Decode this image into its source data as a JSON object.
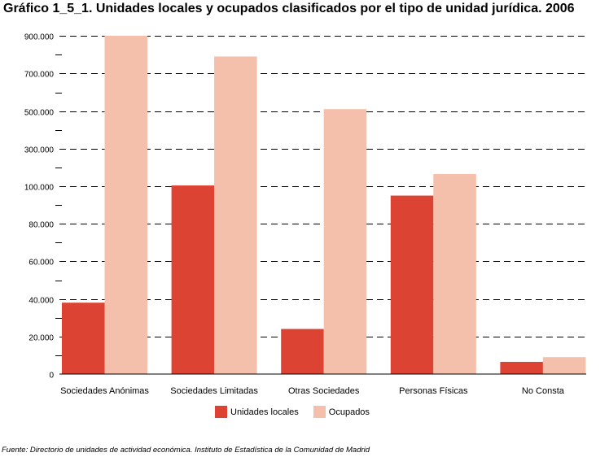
{
  "title": "Gráfico 1_5_1. Unidades locales y ocupados clasificados por el tipo de unidad jurídica. 2006",
  "source": "Fuente: Directorio de unidades de actividad económica. Instituto de Estadística de la Comunidad de Madrid",
  "colors": {
    "unidades": "#dc4332",
    "ocupados": "#f4c0ab"
  },
  "chart_data": {
    "type": "bar",
    "categories": [
      "Sociedades Anónimas",
      "Sociedades Limitadas",
      "Otras Sociedades",
      "Personas Físicas",
      "No Consta"
    ],
    "tick_labels": [
      "0",
      "20.000",
      "40.000",
      "60.000",
      "80.000",
      "100.000",
      "300.000",
      "500.000",
      "700.000",
      "900.000"
    ],
    "tick_values": [
      0,
      20000,
      40000,
      60000,
      80000,
      100000,
      300000,
      500000,
      700000,
      900000
    ],
    "scale": "piecewise: linear 0–100.000 in lower part, compressed 100.000–900.000 in upper part",
    "series": [
      {
        "name": "Unidades locales",
        "values": [
          38000,
          104000,
          24000,
          95000,
          6500
        ]
      },
      {
        "name": "Ocupados",
        "values": [
          900000,
          790000,
          510000,
          165000,
          9000
        ]
      }
    ],
    "grid": true,
    "legend": "bottom-center"
  }
}
